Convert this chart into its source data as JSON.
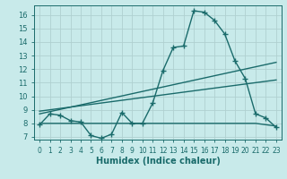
{
  "xlabel": "Humidex (Indice chaleur)",
  "background_color": "#c8eaea",
  "grid_color": "#b0d0d0",
  "line_color": "#1a6b6b",
  "xlim": [
    -0.5,
    23.5
  ],
  "ylim": [
    6.8,
    16.7
  ],
  "yticks": [
    7,
    8,
    9,
    10,
    11,
    12,
    13,
    14,
    15,
    16
  ],
  "xticks": [
    0,
    1,
    2,
    3,
    4,
    5,
    6,
    7,
    8,
    9,
    10,
    11,
    12,
    13,
    14,
    15,
    16,
    17,
    18,
    19,
    20,
    21,
    22,
    23
  ],
  "line1_x": [
    0,
    1,
    2,
    3,
    4,
    5,
    6,
    7,
    8,
    9,
    10,
    11,
    12,
    13,
    14,
    15,
    16,
    17,
    18,
    19,
    20,
    21,
    22,
    23
  ],
  "line1_y": [
    7.9,
    8.7,
    8.6,
    8.2,
    8.1,
    7.1,
    6.9,
    7.2,
    8.8,
    8.0,
    8.0,
    9.5,
    11.9,
    13.6,
    13.7,
    16.3,
    16.2,
    15.6,
    14.6,
    12.6,
    11.3,
    8.7,
    8.4,
    7.7
  ],
  "line2_x": [
    0,
    23
  ],
  "line2_y": [
    8.7,
    12.5
  ],
  "line3_x": [
    0,
    23
  ],
  "line3_y": [
    8.9,
    11.2
  ],
  "line4_x": [
    0,
    9,
    10,
    20,
    21,
    23
  ],
  "line4_y": [
    8.0,
    8.0,
    8.0,
    8.0,
    8.0,
    7.8
  ]
}
